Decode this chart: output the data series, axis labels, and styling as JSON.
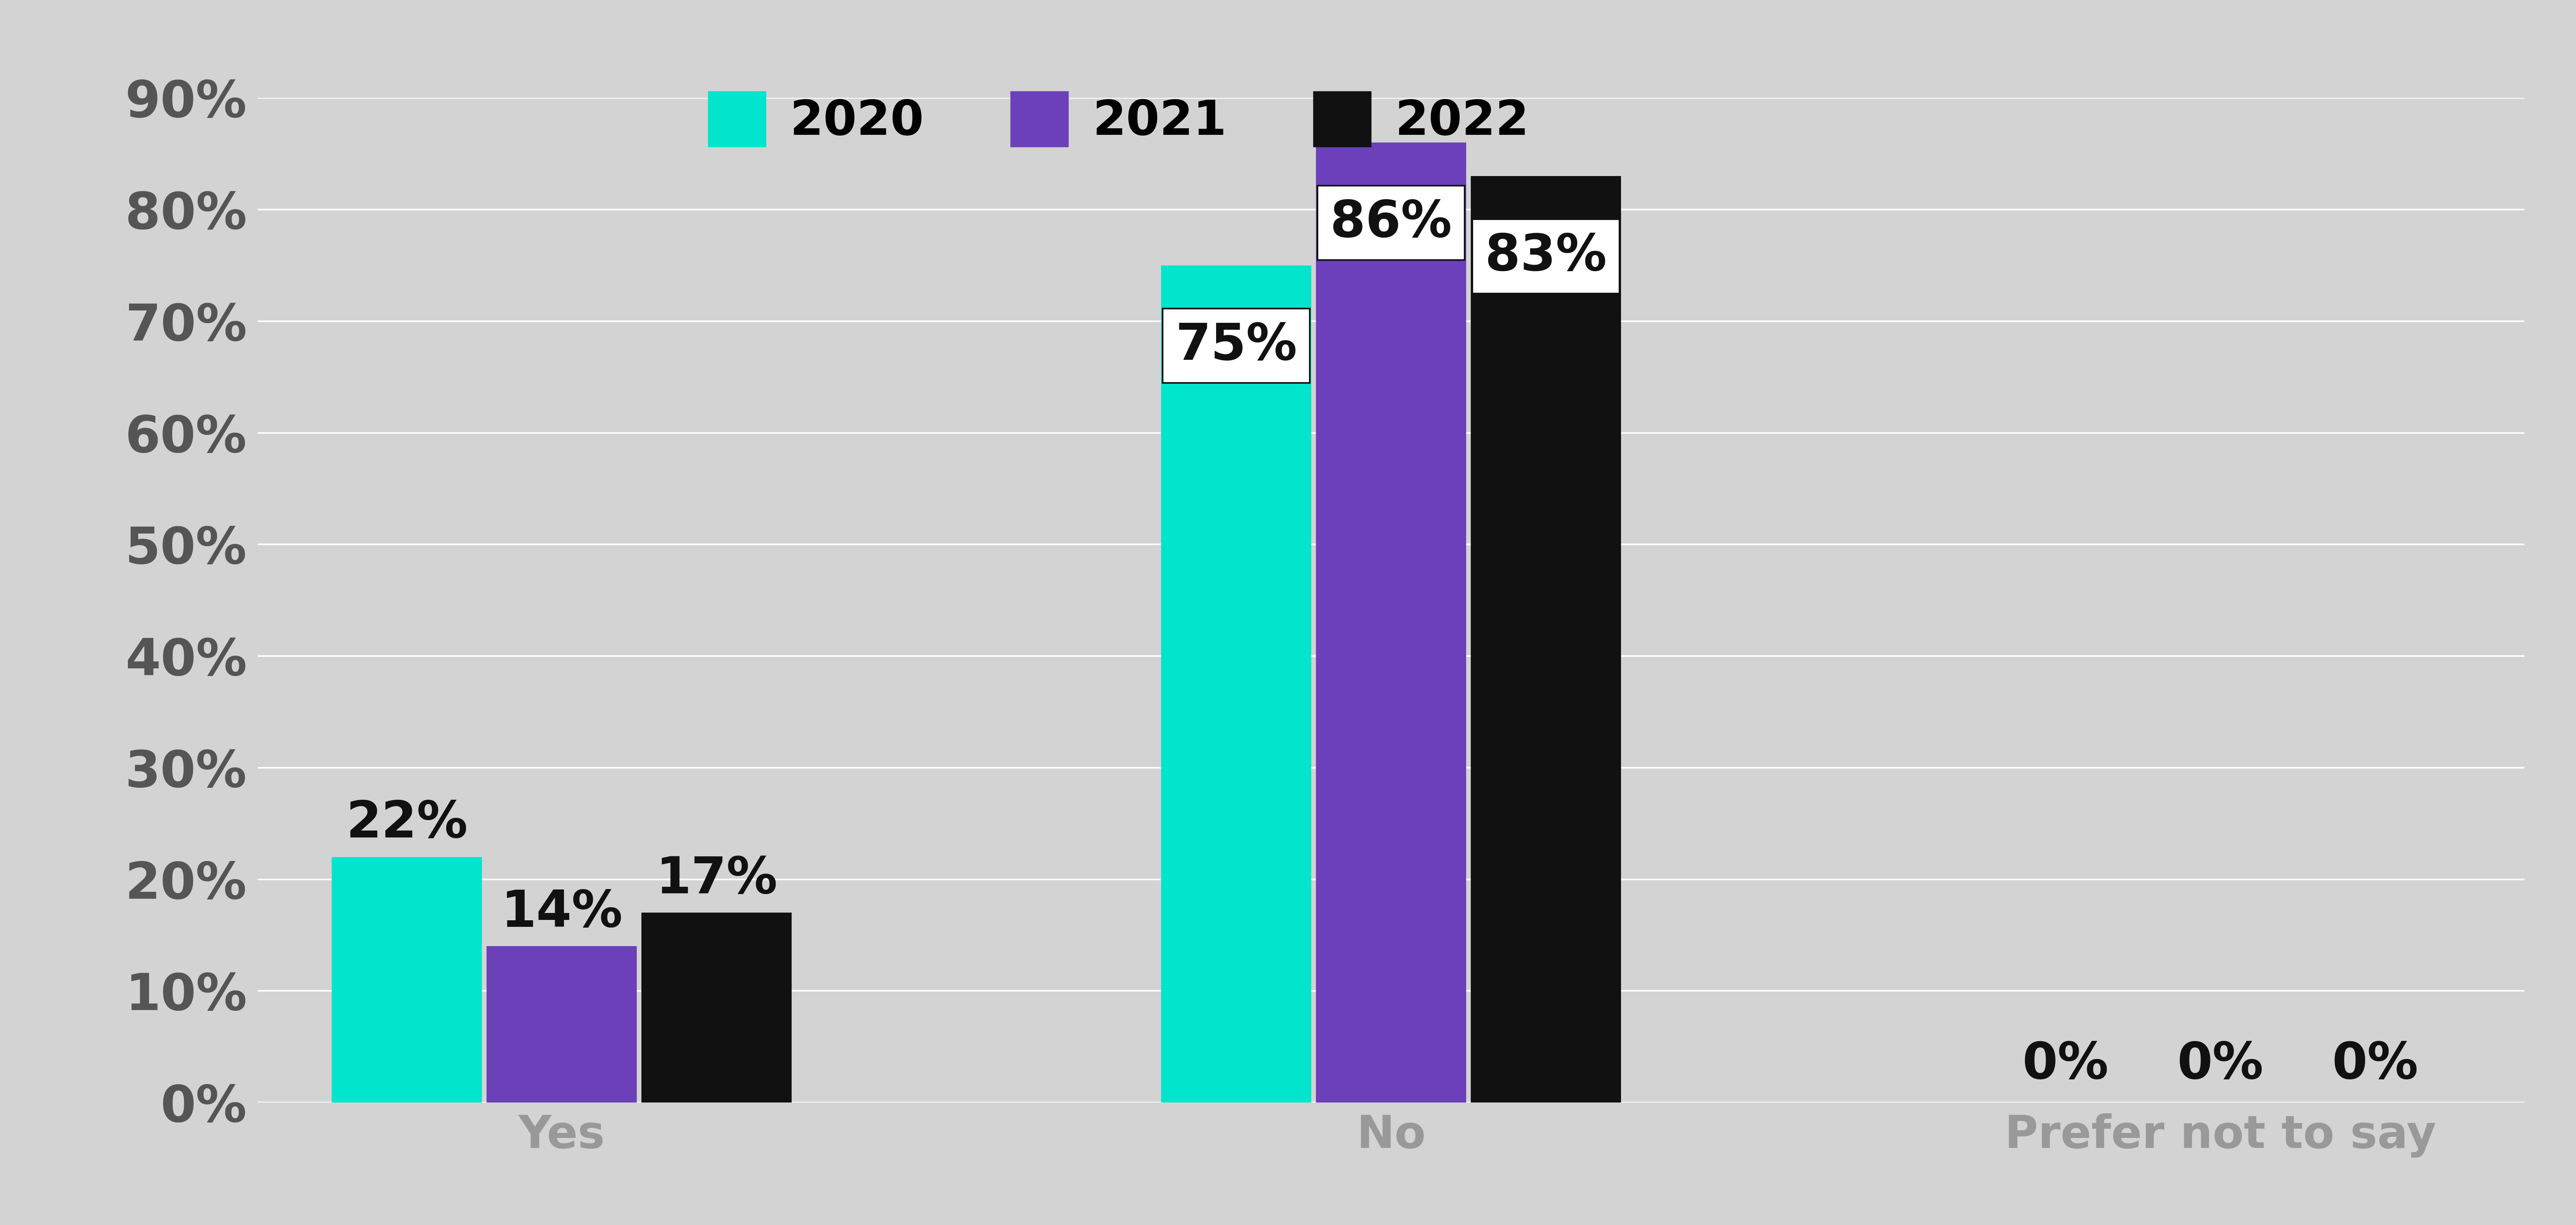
{
  "categories": [
    "Yes",
    "No",
    "Prefer not to say"
  ],
  "series": {
    "2020": [
      22,
      75,
      0
    ],
    "2021": [
      14,
      86,
      0
    ],
    "2022": [
      17,
      83,
      0
    ]
  },
  "colors": {
    "2020": "#00E5CC",
    "2021": "#6B40B8",
    "2022": "#111111"
  },
  "ylim": [
    0,
    90
  ],
  "yticks": [
    0,
    10,
    20,
    30,
    40,
    50,
    60,
    70,
    80,
    90
  ],
  "ytick_labels": [
    "0%",
    "10%",
    "20%",
    "30%",
    "40%",
    "50%",
    "60%",
    "70%",
    "80%",
    "90%"
  ],
  "background_color": "#D3D3D3",
  "tick_fontsize": 95,
  "legend_fontsize": 90,
  "annotation_fontsize": 95,
  "annotation_color": "#111111",
  "annotation_bg_color": "#FFFFFF",
  "category_label_color": "#999999",
  "category_fontsize": 85,
  "ytick_color": "#555555"
}
